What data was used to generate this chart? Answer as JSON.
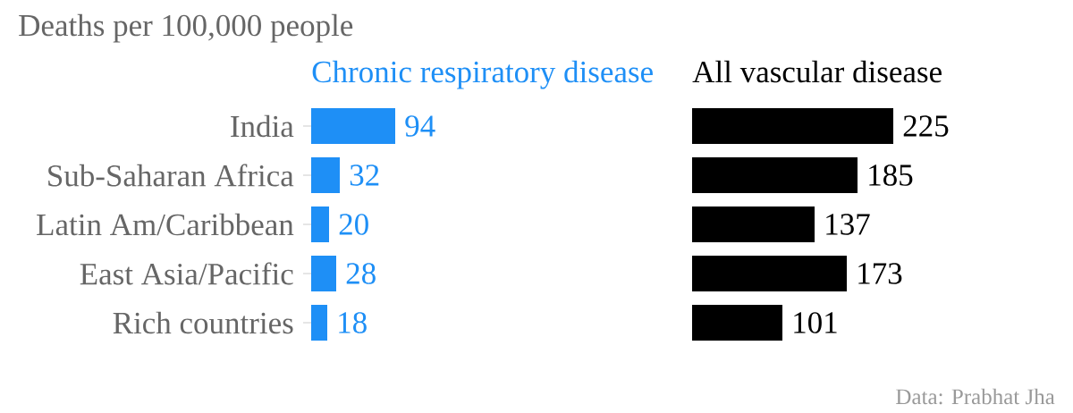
{
  "chart_data": [
    {
      "type": "bar",
      "orientation": "horizontal",
      "title": "Deaths per 100,000 people",
      "categories": [
        "India",
        "Sub-Saharan Africa",
        "Latin Am/Caribbean",
        "East Asia/Pacific",
        "Rich countries"
      ],
      "series": [
        {
          "name": "Chronic respiratory disease",
          "color": "#1e8ff6",
          "values": [
            94,
            32,
            20,
            28,
            18
          ]
        }
      ],
      "data_labels": true,
      "tick_labels": "y"
    },
    {
      "type": "bar",
      "orientation": "horizontal",
      "categories": [
        null,
        null,
        null,
        null,
        null
      ],
      "series": [
        {
          "name": "All vascular disease",
          "color": "#000000",
          "values": [
            225,
            185,
            137,
            173,
            101
          ]
        }
      ],
      "data_labels": true,
      "tick_labels": false,
      "annotations": [
        "Data: Prabhat Jha"
      ]
    }
  ]
}
